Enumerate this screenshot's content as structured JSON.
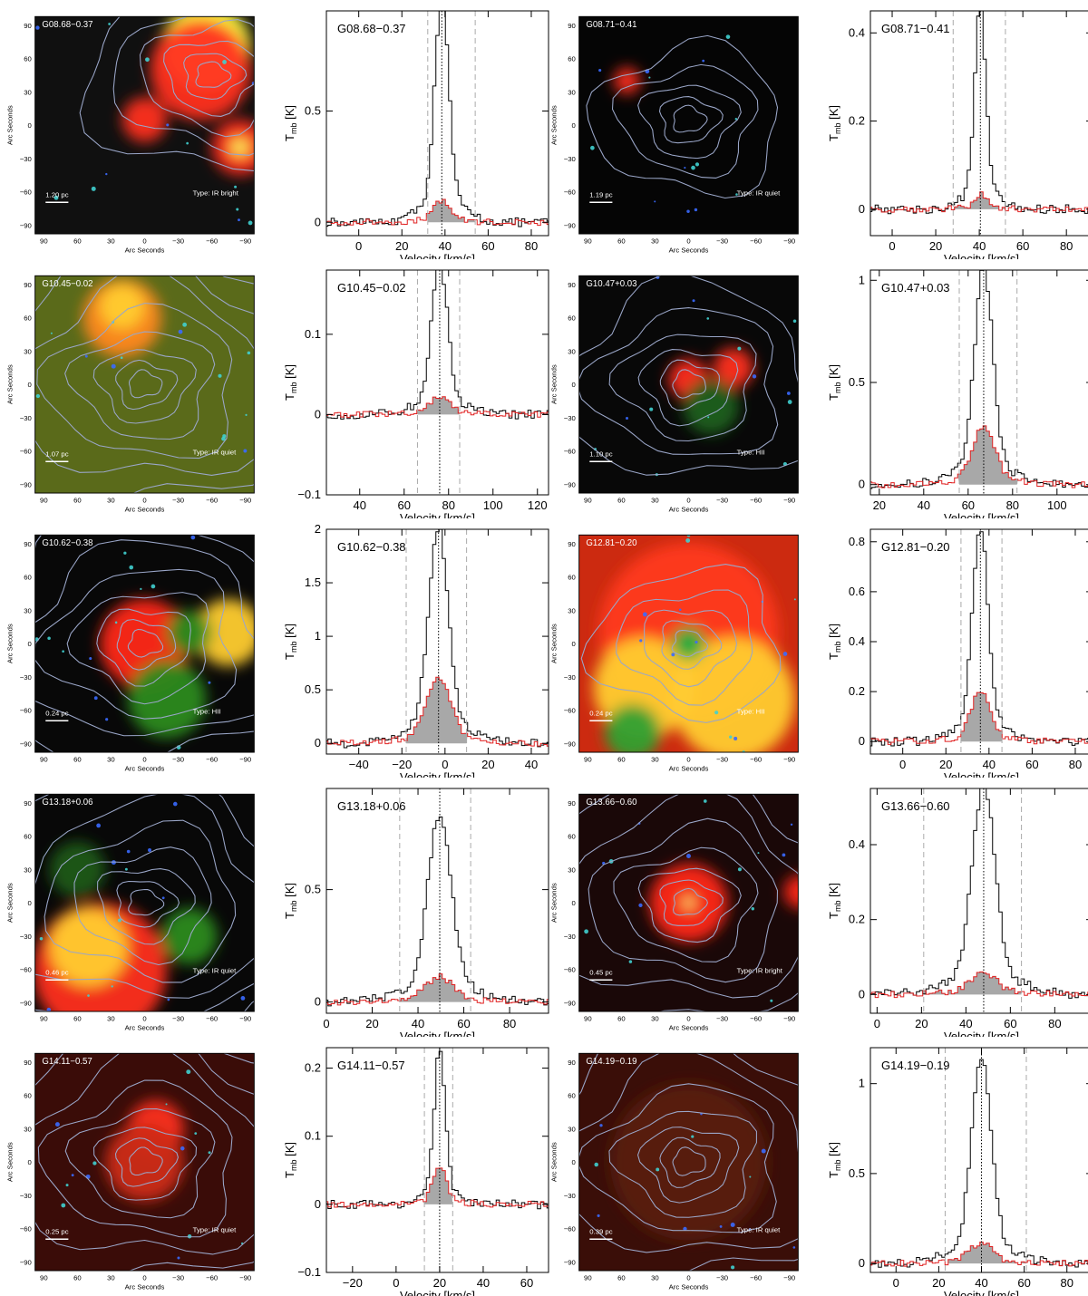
{
  "axis_labels": {
    "image_x": "Arc Seconds",
    "image_y": "Arc Seconds",
    "spec_x": "Velocity [km/s]",
    "spec_y_main": "T",
    "spec_y_sub": "mb",
    "spec_y_unit": "[K]"
  },
  "image_ticks": [
    90,
    60,
    30,
    0,
    -30,
    -60,
    -90
  ],
  "colors": {
    "contour": "#9aa6c8",
    "spectrum_main": "#000000",
    "spectrum_red": "#e02020",
    "fill": "#a8a8a8",
    "dashed": "#aaaaaa"
  },
  "panels": [
    {
      "name": "G08.68−0.37",
      "scale": "1.20  pc",
      "type": "Type:  IR bright",
      "peak": [
        -60,
        45
      ],
      "blobs": [
        {
          "x": -55,
          "y": 70,
          "r": 40,
          "c": "#ffff40"
        },
        {
          "x": -50,
          "y": 50,
          "r": 45,
          "c": "#ff3020"
        },
        {
          "x": -85,
          "y": -20,
          "r": 25,
          "c": "#ff2a1a"
        },
        {
          "x": -85,
          "y": -20,
          "r": 8,
          "c": "#ffff60"
        },
        {
          "x": 0,
          "y": 5,
          "r": 20,
          "c": "#ff3020"
        }
      ],
      "bg": "#101010",
      "nc": 6
    },
    {
      "name": "G08.71−0.41",
      "scale": "1.19  pc",
      "type": "Type:  IR quiet",
      "peak": [
        0,
        5
      ],
      "blobs": [
        {
          "x": 55,
          "y": 40,
          "r": 12,
          "c": "#ff3020"
        }
      ],
      "bg": "#050505",
      "nc": 5
    },
    {
      "name": "G10.45−0.02",
      "scale": "1.07  pc",
      "type": "Type:  IR quiet",
      "peak": [
        0,
        0
      ],
      "blobs": [
        {
          "x": 20,
          "y": 60,
          "r": 35,
          "c": "#ff8820"
        },
        {
          "x": 20,
          "y": 70,
          "r": 20,
          "c": "#ffcc30"
        }
      ],
      "bg": "#5a6a1a",
      "nc": 9
    },
    {
      "name": "G10.47+0.03",
      "scale": "1.10  pc",
      "type": "Type:  HII",
      "peak": [
        0,
        0
      ],
      "blobs": [
        {
          "x": -40,
          "y": 15,
          "r": 18,
          "c": "#ff3020"
        },
        {
          "x": 0,
          "y": 5,
          "r": 18,
          "c": "#ff2a1a"
        },
        {
          "x": -20,
          "y": -20,
          "r": 25,
          "c": "#1a6020"
        }
      ],
      "bg": "#080808",
      "nc": 6
    },
    {
      "name": "G10.62−0.38",
      "scale": "0.24  pc",
      "type": "Type:  HII",
      "peak": [
        0,
        0
      ],
      "blobs": [
        {
          "x": 0,
          "y": 0,
          "r": 40,
          "c": "#ff2818"
        },
        {
          "x": -75,
          "y": 10,
          "r": 30,
          "c": "#ffcc30"
        },
        {
          "x": -20,
          "y": -50,
          "r": 35,
          "c": "#2a8a20"
        },
        {
          "x": -40,
          "y": 10,
          "r": 20,
          "c": "#2a8a20"
        }
      ],
      "bg": "#080808",
      "nc": 7
    },
    {
      "name": "G12.81−0.20",
      "scale": "0.24  pc",
      "type": "Type:  HII",
      "peak": [
        0,
        0
      ],
      "blobs": [
        {
          "x": 0,
          "y": 10,
          "r": 80,
          "c": "#ff3a1a"
        },
        {
          "x": -40,
          "y": -50,
          "r": 55,
          "c": "#ffcc30"
        },
        {
          "x": 40,
          "y": -40,
          "r": 45,
          "c": "#ffcc30"
        },
        {
          "x": 0,
          "y": 0,
          "r": 15,
          "c": "#20b040"
        },
        {
          "x": 50,
          "y": -80,
          "r": 25,
          "c": "#30a030"
        }
      ],
      "bg": "#cc2a10",
      "nc": 5
    },
    {
      "name": "G13.18+0.06",
      "scale": "0.46  pc",
      "type": "Type:  IR quiet",
      "peak": [
        0,
        0
      ],
      "blobs": [
        {
          "x": 40,
          "y": -60,
          "r": 60,
          "c": "#ff3020"
        },
        {
          "x": 50,
          "y": -40,
          "r": 35,
          "c": "#ffcc30"
        },
        {
          "x": -40,
          "y": -30,
          "r": 25,
          "c": "#2a8a20"
        },
        {
          "x": 60,
          "y": 30,
          "r": 25,
          "c": "#1a5a18"
        }
      ],
      "bg": "#080808",
      "nc": 8
    },
    {
      "name": "G13.66−0.60",
      "scale": "0.45  pc",
      "type": "Type:  IR bright",
      "peak": [
        0,
        0
      ],
      "blobs": [
        {
          "x": 0,
          "y": 0,
          "r": 35,
          "c": "#ff2818"
        },
        {
          "x": 0,
          "y": 0,
          "r": 5,
          "c": "#ffff80"
        },
        {
          "x": -100,
          "y": 10,
          "r": 15,
          "c": "#ff2818"
        }
      ],
      "bg": "#1a0808",
      "nc": 7
    },
    {
      "name": "G14.11−0.57",
      "scale": "0.25  pc",
      "type": "Type:  IR quiet",
      "peak": [
        0,
        0
      ],
      "blobs": [
        {
          "x": -10,
          "y": 30,
          "r": 25,
          "c": "#ff3020"
        },
        {
          "x": 0,
          "y": 0,
          "r": 35,
          "c": "#cc2a18"
        }
      ],
      "bg": "#3a0c08",
      "nc": 8
    },
    {
      "name": "G14.19−0.19",
      "scale": "0.39  pc",
      "type": "Type:  IR quiet",
      "peak": [
        0,
        0
      ],
      "blobs": [
        {
          "x": 0,
          "y": 0,
          "r": 70,
          "c": "#5a1a10"
        }
      ],
      "bg": "#3a0e08",
      "nc": 7
    }
  ],
  "chart_data": [
    {
      "type": "line",
      "title": "G08.68−0.37",
      "xlim": [
        -15,
        88
      ],
      "ylim": [
        -0.06,
        0.95
      ],
      "xticks": [
        0,
        20,
        40,
        60,
        80
      ],
      "yticks": [
        0,
        0.5
      ],
      "ytick_labels": [
        "0",
        "0.5"
      ],
      "vlsr": 38.5,
      "vrange": [
        32,
        54
      ],
      "peak": 0.9,
      "width": 3.2,
      "peak2": 0.09,
      "base_left": 0.03
    },
    {
      "type": "line",
      "title": "G08.71−0.41",
      "xlim": [
        -10,
        92
      ],
      "ylim": [
        -0.06,
        0.45
      ],
      "xticks": [
        0,
        20,
        40,
        60,
        80
      ],
      "yticks": [
        0,
        0.2,
        0.4
      ],
      "ytick_labels": [
        "0",
        "0.2",
        "0.4"
      ],
      "vlsr": 40.5,
      "vrange": [
        28,
        52
      ],
      "peak": 0.41,
      "width": 2.5,
      "peak2": 0.03,
      "base_left": 0.01
    },
    {
      "type": "line",
      "title": "G10.45−0.02",
      "xlim": [
        25,
        125
      ],
      "ylim": [
        -0.1,
        0.18
      ],
      "xticks": [
        40,
        60,
        80,
        100,
        120
      ],
      "yticks": [
        -0.1,
        0,
        0.1
      ],
      "ytick_labels": [
        "−0.1",
        "0",
        "0.1"
      ],
      "vlsr": 76,
      "vrange": [
        66,
        85
      ],
      "peak": 0.17,
      "width": 3.5,
      "peak2": 0.02,
      "base_left": 0.0
    },
    {
      "type": "line",
      "title": "G10.47+0.03",
      "xlim": [
        16,
        116
      ],
      "ylim": [
        -0.05,
        1.05
      ],
      "xticks": [
        20,
        40,
        60,
        80,
        100
      ],
      "yticks": [
        0,
        0.5,
        1
      ],
      "ytick_labels": [
        "0",
        "0.5",
        "1"
      ],
      "vlsr": 67,
      "vrange": [
        56,
        82
      ],
      "peak": 0.95,
      "width": 4,
      "peak2": 0.26,
      "base_left": 0.02
    },
    {
      "type": "line",
      "title": "G10.62−0.38",
      "xlim": [
        -55,
        48
      ],
      "ylim": [
        -0.1,
        2.0
      ],
      "xticks": [
        -40,
        -20,
        0,
        20,
        40
      ],
      "yticks": [
        0,
        0.5,
        1,
        1.5,
        2
      ],
      "ytick_labels": [
        "0",
        "0.5",
        "1",
        "1.5",
        "2"
      ],
      "vlsr": -3,
      "vrange": [
        -18,
        10
      ],
      "peak": 1.8,
      "width": 4.5,
      "peak2": 0.55,
      "base_left": 0.02
    },
    {
      "type": "line",
      "title": "G12.81−0.20",
      "xlim": [
        -15,
        88
      ],
      "ylim": [
        -0.05,
        0.85
      ],
      "xticks": [
        0,
        20,
        40,
        60,
        80
      ],
      "yticks": [
        0,
        0.2,
        0.4,
        0.6,
        0.8
      ],
      "ytick_labels": [
        "0",
        "0.2",
        "0.4",
        "0.6",
        "0.8"
      ],
      "vlsr": 36,
      "vrange": [
        27,
        46
      ],
      "peak": 0.77,
      "width": 3.5,
      "peak2": 0.18,
      "base_left": 0.01
    },
    {
      "type": "line",
      "title": "G13.18+0.06",
      "xlim": [
        0,
        97
      ],
      "ylim": [
        -0.05,
        0.95
      ],
      "xticks": [
        0,
        20,
        40,
        60,
        80
      ],
      "yticks": [
        0,
        0.5
      ],
      "ytick_labels": [
        "0",
        "0.5"
      ],
      "vlsr": 49.5,
      "vrange": [
        32,
        63
      ],
      "peak": 0.75,
      "width": 5,
      "peak2": 0.1,
      "base_left": 0.02
    },
    {
      "type": "line",
      "title": "G13.66−0.60",
      "xlim": [
        -3,
        97
      ],
      "ylim": [
        -0.05,
        0.55
      ],
      "xticks": [
        0,
        20,
        40,
        60,
        80
      ],
      "yticks": [
        0,
        0.2,
        0.4
      ],
      "ytick_labels": [
        "0",
        "0.2",
        "0.4"
      ],
      "vlsr": 48,
      "vrange": [
        21,
        65
      ],
      "peak": 0.5,
      "width": 5,
      "peak2": 0.05,
      "base_left": 0.02
    },
    {
      "type": "line",
      "title": "G14.11−0.57",
      "xlim": [
        -32,
        70
      ],
      "ylim": [
        -0.1,
        0.23
      ],
      "xticks": [
        -20,
        0,
        20,
        40,
        60
      ],
      "yticks": [
        -0.1,
        0,
        0.1,
        0.2
      ],
      "ytick_labels": [
        "−0.1",
        "0",
        "0.1",
        "0.2"
      ],
      "vlsr": 20,
      "vrange": [
        13,
        26
      ],
      "peak": 0.2,
      "width": 2.5,
      "peak2": 0.05,
      "base_left": 0.0
    },
    {
      "type": "line",
      "title": "G14.19−0.19",
      "xlim": [
        -12,
        92
      ],
      "ylim": [
        -0.05,
        1.2
      ],
      "xticks": [
        0,
        20,
        40,
        60,
        80
      ],
      "yticks": [
        0,
        0.5,
        1
      ],
      "ytick_labels": [
        "0",
        "0.5",
        "1"
      ],
      "vlsr": 40,
      "vrange": [
        23,
        61
      ],
      "peak": 1.03,
      "width": 4.5,
      "peak2": 0.1,
      "base_left": 0.01
    }
  ]
}
